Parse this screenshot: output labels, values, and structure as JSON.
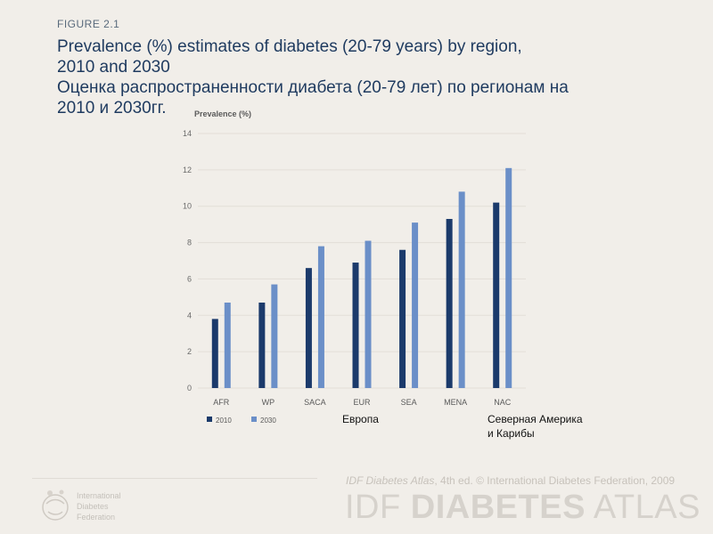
{
  "figure_label": "FIGURE 2.1",
  "title_en_line1": "Prevalence (%) estimates of diabetes (20-79 years) by region,",
  "title_en_line2": "2010 and 2030",
  "title_ru_line1": "Оценка распространенности диабета (20-79 лет) по регионам на",
  "title_ru_line2": "2010 и 2030гг.",
  "chart_data": {
    "type": "bar",
    "ylabel": "Prevalence (%)",
    "ylim": [
      0,
      14
    ],
    "yticks": [
      0,
      2,
      4,
      6,
      8,
      10,
      12,
      14
    ],
    "grid": true,
    "legend_position": "bottom-left",
    "categories": [
      "AFR",
      "WP",
      "SACA",
      "EUR",
      "SEA",
      "MENA",
      "NAC"
    ],
    "series": [
      {
        "name": "2010",
        "color": "#1b3a6b",
        "values": [
          3.8,
          4.7,
          6.6,
          6.9,
          7.6,
          9.3,
          10.2
        ]
      },
      {
        "name": "2030",
        "color": "#6b8fc8",
        "values": [
          4.7,
          5.7,
          7.8,
          8.1,
          9.1,
          10.8,
          12.1
        ]
      }
    ]
  },
  "annotations": {
    "eur": "Европа",
    "nac_line1": "Северная Америка",
    "nac_line2": "и Карибы"
  },
  "footer": {
    "org_line1": "International",
    "org_line2": "Diabetes",
    "org_line3": "Federation",
    "credit_italic": "IDF Diabetes Atlas",
    "credit_rest": ", 4th ed.  © International Diabetes Federation, 2009",
    "brand_light1": "IDF ",
    "brand_bold": "DIABETES",
    "brand_light2": " ATLAS"
  }
}
